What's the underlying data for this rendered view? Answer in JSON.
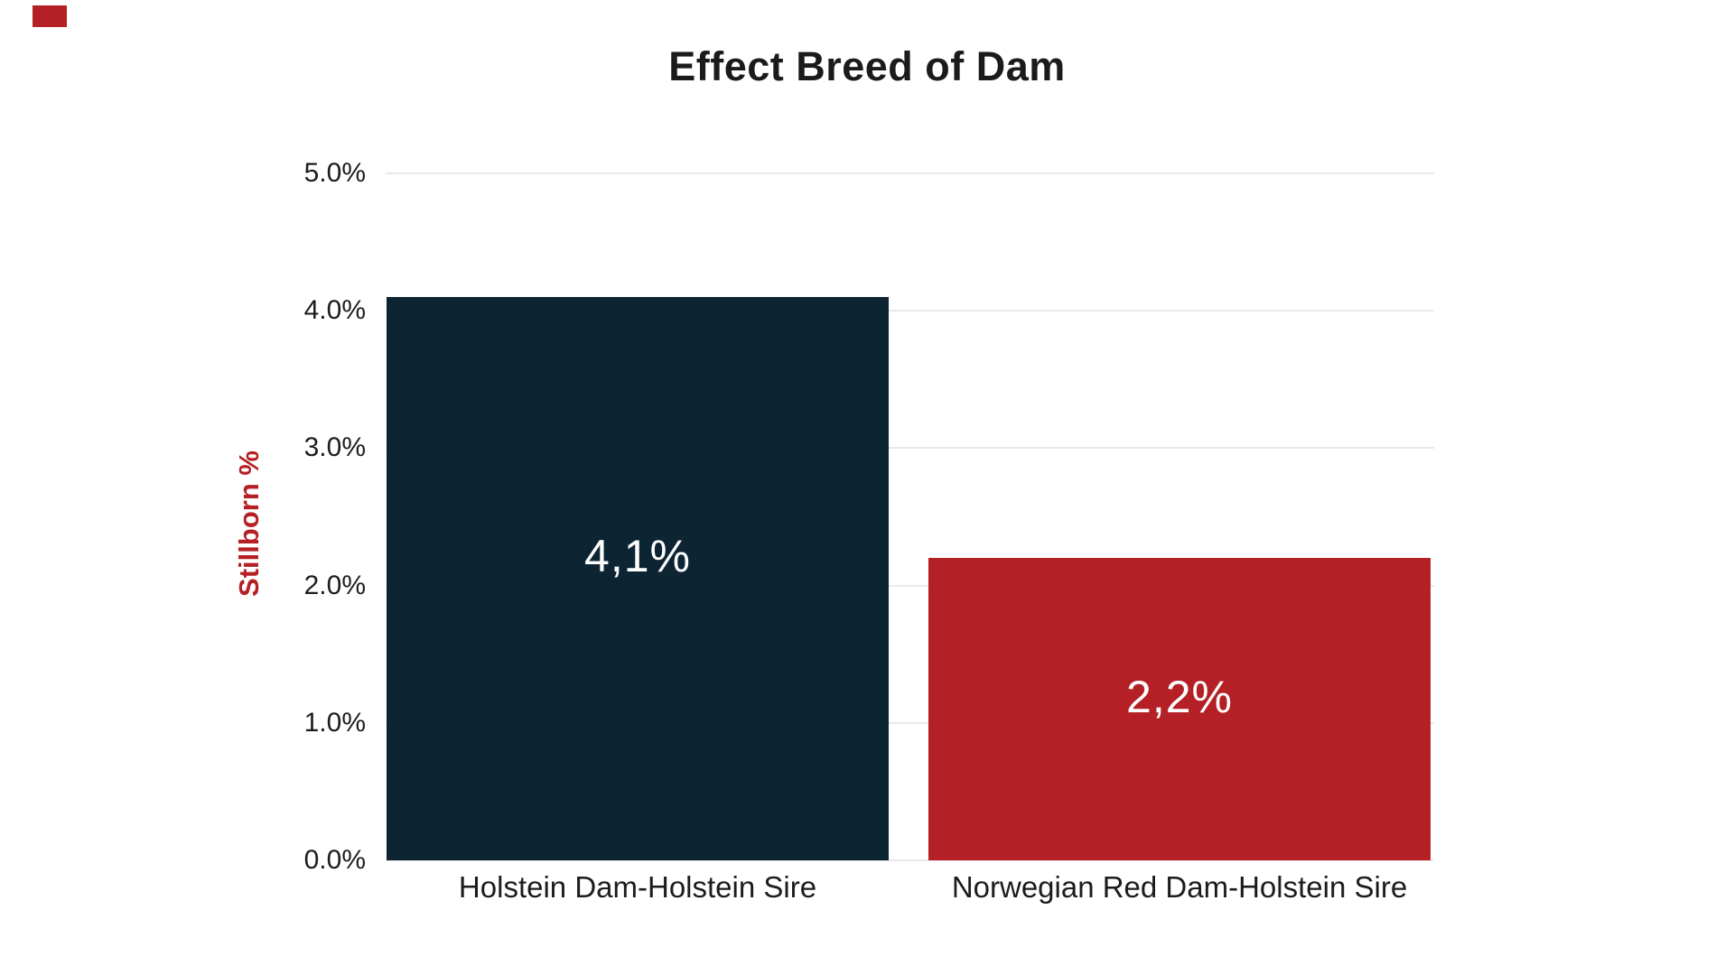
{
  "page": {
    "background": "#ffffff"
  },
  "brand_mark": {
    "color": "#b42025"
  },
  "chart_data": {
    "type": "bar",
    "title": "Effect Breed of Dam",
    "xlabel": "",
    "ylabel": "Stillborn %",
    "categories": [
      "Holstein Dam-Holstein Sire",
      "Norwegian Red Dam-Holstein Sire"
    ],
    "values": [
      4.1,
      2.2
    ],
    "bar_labels": [
      "4,1%",
      "2,2%"
    ],
    "bar_colors": [
      "#0d2433",
      "#b42025"
    ],
    "ylim": [
      0,
      5
    ],
    "y_ticks": [
      {
        "value": 0,
        "label": "0.0%"
      },
      {
        "value": 1,
        "label": "1.0%"
      },
      {
        "value": 2,
        "label": "2.0%"
      },
      {
        "value": 3,
        "label": "3.0%"
      },
      {
        "value": 4,
        "label": "4.0%"
      },
      {
        "value": 5,
        "label": "5.0%"
      }
    ],
    "grid": "horizontal",
    "legend": "none",
    "colors": {
      "title_text": "#1b1b1b",
      "axis_text": "#1c1c1c",
      "ylabel_text": "#b42025",
      "gridline": "#e9e9e9",
      "value_label_text": "#ffffff",
      "background": "#ffffff"
    }
  }
}
